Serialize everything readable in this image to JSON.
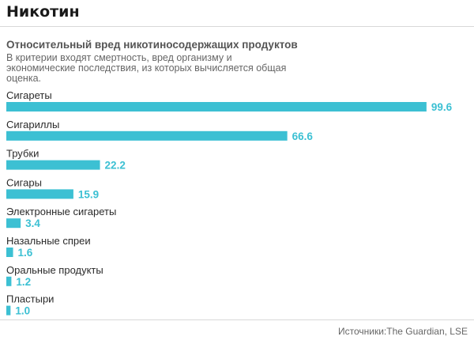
{
  "header": {
    "title": "Никотин"
  },
  "chart_data": {
    "type": "bar",
    "orientation": "horizontal",
    "title": "Относительный вред никотиносодержащих продуктов",
    "subtitle": "В критерии входят смертность, вред организму и экономические последствия, из которых вычисляется общая оценка.",
    "categories": [
      "Сигареты",
      "Сигариллы",
      "Трубки",
      "Сигары",
      "Электронные сигареты",
      "Назальные спреи",
      "Оральные продукты",
      "Пластыри"
    ],
    "values": [
      99.6,
      66.6,
      22.2,
      15.9,
      3.4,
      1.6,
      1.2,
      1.0
    ],
    "value_labels": [
      "99.6",
      "66.6",
      "22.2",
      "15.9",
      "3.4",
      "1.6",
      "1.2",
      "1.0"
    ],
    "xlim": [
      0,
      100
    ],
    "grid": false,
    "legend": "none",
    "bar_color": "#3cc0d3"
  },
  "footer": {
    "source": "Источники:The Guardian, LSE"
  }
}
